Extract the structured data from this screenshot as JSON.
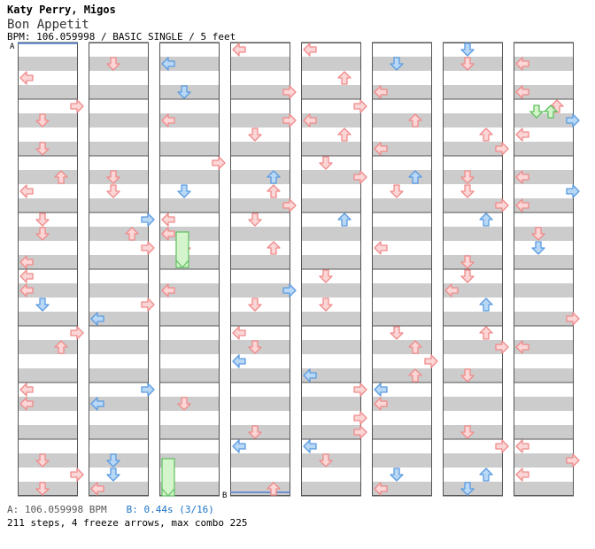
{
  "song": {
    "artist": "Katy Perry, Migos",
    "title": "Bon Appetit",
    "info": "BPM: 106.059998 / BASIC SINGLE / 5 feet"
  },
  "markers": {
    "a": "A",
    "b": "B"
  },
  "footer": {
    "a_text": "A: 106.059998 BPM",
    "b_text": "B: 0.44s (3/16)",
    "summary": "211 steps, 4 freeze arrows, max combo 225"
  },
  "colors": {
    "red": "#f08a8a",
    "red_fill": "#fbd6d6",
    "blue": "#5a9be0",
    "blue_fill": "#b9d8f6",
    "green": "#5fbf5f",
    "green_fill": "#d4f4cc",
    "stripe": "#cccccc"
  },
  "steps": [
    [
      [
        1,
        2,
        "U"
      ],
      [
        1,
        4,
        "L"
      ],
      [
        1,
        5,
        "L"
      ],
      [
        2,
        6,
        "L"
      ],
      [
        2,
        7,
        "D"
      ],
      [
        3,
        6,
        "D"
      ],
      [
        3,
        7,
        "D"
      ],
      [
        4,
        4,
        "L"
      ],
      [
        4,
        6,
        "R"
      ],
      [
        5,
        8,
        "U"
      ],
      [
        6,
        2,
        "L"
      ],
      [
        6,
        4,
        "R"
      ],
      [
        7,
        2,
        "R"
      ],
      [
        7,
        4,
        "L"
      ],
      [
        8,
        3,
        "U"
      ],
      [
        9,
        4,
        "L"
      ],
      [
        9,
        5,
        "L"
      ]
    ],
    [
      [
        0,
        3,
        "U"
      ],
      [
        1,
        3,
        "D"
      ],
      [
        2,
        3,
        "D"
      ],
      [
        3,
        4,
        "U"
      ],
      [
        4,
        1,
        "L"
      ],
      [
        5,
        4,
        "R"
      ],
      [
        6,
        1,
        "L"
      ],
      [
        6,
        3,
        "D"
      ],
      [
        7,
        3,
        "U"
      ],
      [
        8,
        1,
        "L"
      ],
      [
        8,
        3,
        "R"
      ],
      [
        9,
        1,
        "L"
      ],
      [
        9,
        4,
        "R"
      ],
      [
        10,
        1,
        "L"
      ],
      [
        10,
        2,
        "D"
      ]
    ]
  ]
}
